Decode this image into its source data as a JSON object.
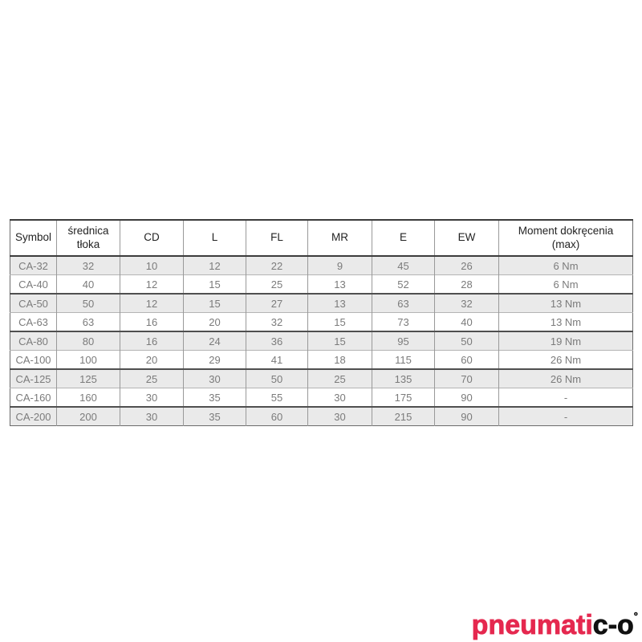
{
  "table": {
    "columns": [
      "Symbol",
      "średnica tłoka",
      "CD",
      "L",
      "FL",
      "MR",
      "E",
      "EW",
      "Moment dokręcenia (max)"
    ],
    "rows": [
      {
        "shaded": true,
        "cells": [
          "CA-32",
          "32",
          "10",
          "12",
          "22",
          "9",
          "45",
          "26",
          "6 Nm"
        ]
      },
      {
        "shaded": false,
        "cells": [
          "CA-40",
          "40",
          "12",
          "15",
          "25",
          "13",
          "52",
          "28",
          "6 Nm"
        ]
      },
      {
        "shaded": true,
        "cells": [
          "CA-50",
          "50",
          "12",
          "15",
          "27",
          "13",
          "63",
          "32",
          "13 Nm"
        ]
      },
      {
        "shaded": false,
        "cells": [
          "CA-63",
          "63",
          "16",
          "20",
          "32",
          "15",
          "73",
          "40",
          "13 Nm"
        ]
      },
      {
        "shaded": true,
        "cells": [
          "CA-80",
          "80",
          "16",
          "24",
          "36",
          "15",
          "95",
          "50",
          "19 Nm"
        ]
      },
      {
        "shaded": false,
        "cells": [
          "CA-100",
          "100",
          "20",
          "29",
          "41",
          "18",
          "115",
          "60",
          "26 Nm"
        ]
      },
      {
        "shaded": true,
        "cells": [
          "CA-125",
          "125",
          "25",
          "30",
          "50",
          "25",
          "135",
          "70",
          "26 Nm"
        ]
      },
      {
        "shaded": false,
        "cells": [
          "CA-160",
          "160",
          "30",
          "35",
          "55",
          "30",
          "175",
          "90",
          "-"
        ]
      },
      {
        "shaded": true,
        "cells": [
          "CA-200",
          "200",
          "30",
          "35",
          "60",
          "30",
          "215",
          "90",
          "-"
        ]
      }
    ]
  },
  "logo": {
    "primary_text": "pneumati",
    "secondary_text": "c-o",
    "registered_mark": "°",
    "primary_color": "#e5284f",
    "secondary_color": "#111111"
  },
  "colors": {
    "page_background": "#ffffff",
    "row_shaded_bg": "#eaeaea",
    "cell_text": "#7b7b7b",
    "header_text": "#232323",
    "border_dark": "#3c3c3c",
    "border_light": "#b4b4b4",
    "border_vertical": "#999999"
  }
}
